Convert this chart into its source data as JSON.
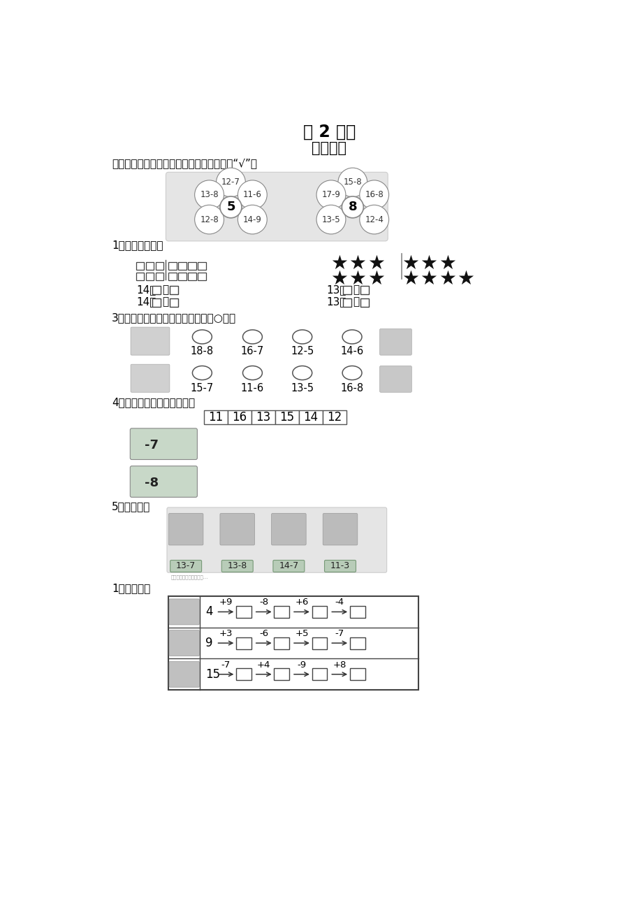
{
  "title1": "第 2 课时",
  "title2": "十几减几",
  "bg_color": "#ffffff",
  "section0_label": "算一算，把结果等于花蕊里的数的算式打上“√”。",
  "flower1_center": "5",
  "flower1_petals": [
    "12-7",
    "13-8",
    "11-6",
    "12-8",
    "14-9"
  ],
  "flower2_center": "8",
  "flower2_petals": [
    "15-8",
    "17-9",
    "16-8",
    "13-5",
    "12-4"
  ],
  "section1_label": "1、看图写算式。",
  "section3_label": "3、看谁先到家，把得数写在上面的○里。",
  "row1_exprs": [
    "18-8",
    "16-7",
    "12-5",
    "14-6"
  ],
  "row2_exprs": [
    "15-7",
    "11-6",
    "13-5",
    "16-8"
  ],
  "section4_label": "4、比一比，哪辆车跑得快。",
  "car_numbers": [
    "11",
    "16",
    "13",
    "15",
    "14",
    "12"
  ],
  "car1_label": "-7",
  "car2_label": "-8",
  "section5_label": "5、小动物们",
  "animal_exprs": [
    "13-7",
    "13-8",
    "14-7",
    "11-3"
  ],
  "section6_label": "1、接力赛。",
  "relay_row1_start": "15",
  "relay_row1_ops": [
    "-7",
    "+4",
    "-9",
    "+8"
  ],
  "relay_row2_start": "9",
  "relay_row2_ops": [
    "+3",
    "-6",
    "+5",
    "-7"
  ],
  "relay_row3_start": "4",
  "relay_row3_ops": [
    "+9",
    "-8",
    "+6",
    "-4"
  ]
}
